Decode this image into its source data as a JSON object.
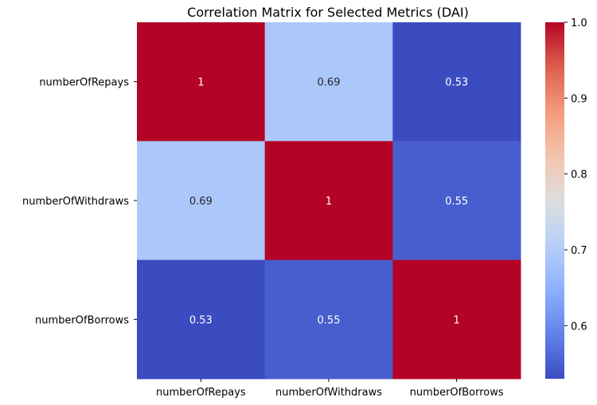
{
  "chart_data": {
    "type": "heatmap",
    "title": "Correlation Matrix for Selected Metrics (DAI)",
    "row_labels": [
      "numberOfRepays",
      "numberOfWithdraws",
      "numberOfBorrows"
    ],
    "col_labels": [
      "numberOfRepays",
      "numberOfWithdraws",
      "numberOfBorrows"
    ],
    "values": [
      [
        1,
        0.69,
        0.53
      ],
      [
        0.69,
        1,
        0.55
      ],
      [
        0.53,
        0.55,
        1
      ]
    ],
    "cell_labels": [
      [
        "1",
        "0.69",
        "0.53"
      ],
      [
        "0.69",
        "1",
        "0.55"
      ],
      [
        "0.53",
        "0.55",
        "1"
      ]
    ],
    "colormap": "coolwarm",
    "colorbar": {
      "range": [
        0.53,
        1.0
      ],
      "ticks": [
        0.6,
        0.7,
        0.8,
        0.9,
        1.0
      ],
      "tick_labels": [
        "0.6",
        "0.7",
        "0.8",
        "0.9",
        "1.0"
      ]
    }
  }
}
